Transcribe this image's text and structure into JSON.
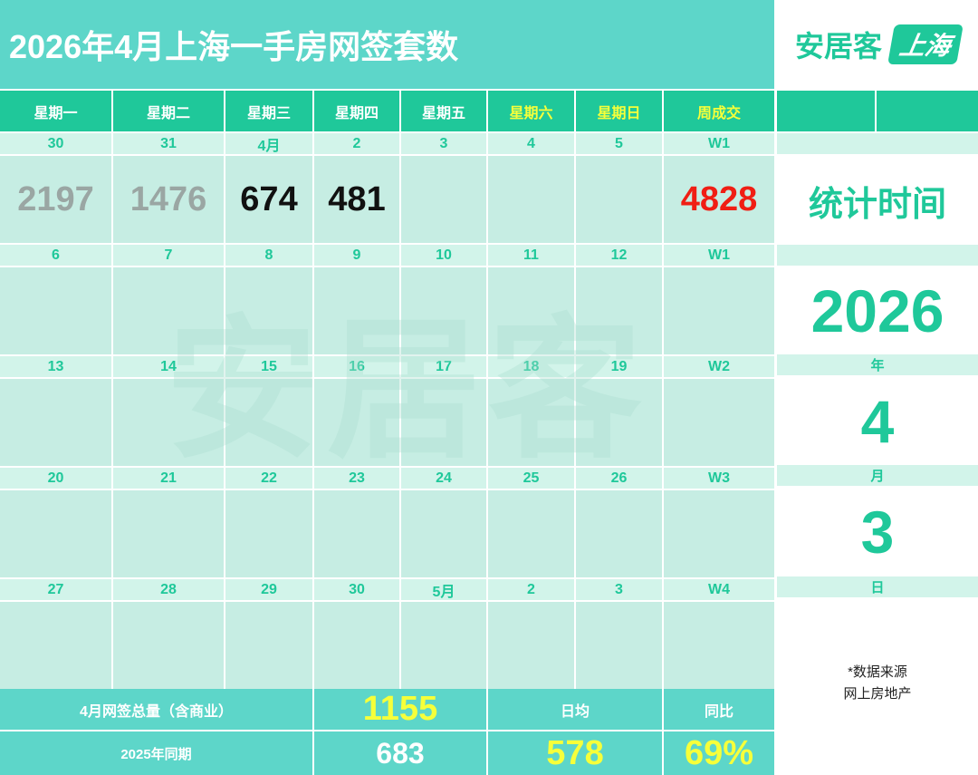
{
  "header": {
    "title": "2026年4月上海一手房网签套数"
  },
  "logo": {
    "brand": "安居客",
    "city": "上海"
  },
  "calendar": {
    "headers": [
      "星期一",
      "星期二",
      "星期三",
      "星期四",
      "星期五",
      "星期六",
      "星期日",
      "周成交"
    ],
    "weeks": [
      {
        "dates": [
          "30",
          "31",
          "4月",
          "2",
          "3",
          "4",
          "5",
          "W1"
        ],
        "values": [
          "2197",
          "1476",
          "674",
          "481",
          "",
          "",
          "",
          "4828"
        ]
      },
      {
        "dates": [
          "6",
          "7",
          "8",
          "9",
          "10",
          "11",
          "12",
          "W1"
        ],
        "values": [
          "",
          "",
          "",
          "",
          "",
          "",
          "",
          ""
        ]
      },
      {
        "dates": [
          "13",
          "14",
          "15",
          "16",
          "17",
          "18",
          "19",
          "W2"
        ],
        "values": [
          "",
          "",
          "",
          "",
          "",
          "",
          "",
          ""
        ]
      },
      {
        "dates": [
          "20",
          "21",
          "22",
          "23",
          "24",
          "25",
          "26",
          "W3"
        ],
        "values": [
          "",
          "",
          "",
          "",
          "",
          "",
          "",
          ""
        ]
      },
      {
        "dates": [
          "27",
          "28",
          "29",
          "30",
          "5月",
          "2",
          "3",
          "W4"
        ],
        "values": [
          "",
          "",
          "",
          "",
          "",
          "",
          "",
          ""
        ]
      }
    ],
    "watermark": "安居客"
  },
  "side": {
    "stat_label": "统计时间",
    "year": "2026",
    "year_label": "年",
    "month": "4",
    "month_label": "月",
    "day": "3",
    "day_label": "日",
    "source_line1": "*数据来源",
    "source_line2": "网上房地产"
  },
  "footer": {
    "total_label": "4月网签总量（含商业）",
    "total_value": "1155",
    "daily_avg_label": "日均",
    "yoy_label": "同比",
    "last_year_label": "2025年同期",
    "last_year_value": "683",
    "daily_avg_value": "578",
    "yoy_value": "69%"
  },
  "colors": {
    "accent": "#1fc89a",
    "teal": "#5dd6c9",
    "highlight": "#f6ff3a",
    "red": "#f01e14"
  }
}
